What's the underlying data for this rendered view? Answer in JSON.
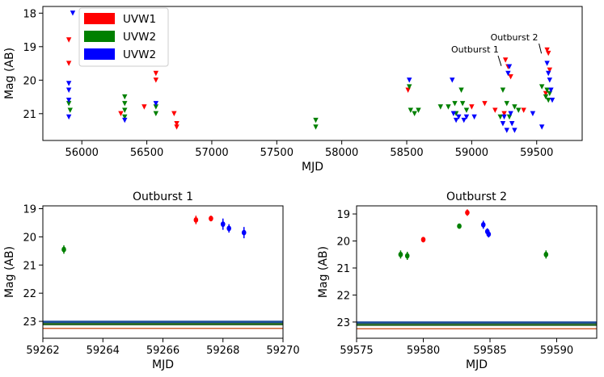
{
  "chart_data": [
    {
      "type": "scatter",
      "id": "top",
      "title": "",
      "xlabel": "MJD",
      "ylabel": "Mag (AB)",
      "xlim": [
        55700,
        59850
      ],
      "ylim": [
        21.8,
        17.8
      ],
      "xticks": [
        56000,
        56500,
        57000,
        57500,
        58000,
        58500,
        59000,
        59500
      ],
      "yticks": [
        18,
        19,
        20,
        21
      ],
      "legend": {
        "position": "top-left",
        "entries": [
          {
            "label": "UVW1",
            "color": "#ff0000"
          },
          {
            "label": "UVW2",
            "color": "#008000"
          },
          {
            "label": "UVW2",
            "color": "#0000ff"
          }
        ]
      },
      "annotations": [
        {
          "text": "Outburst 1",
          "x": 59265,
          "y": 19.6
        },
        {
          "text": "Outburst 2",
          "x": 59580,
          "y": 19.3
        }
      ],
      "series": [
        {
          "name": "UVW1",
          "color": "#ff0000",
          "marker": "triangle-down",
          "points": [
            [
              55900,
              18.8
            ],
            [
              55900,
              19.5
            ],
            [
              56300,
              21.0
            ],
            [
              56480,
              20.8
            ],
            [
              56570,
              19.8
            ],
            [
              56570,
              20.0
            ],
            [
              56710,
              21.0
            ],
            [
              56730,
              21.3
            ],
            [
              56730,
              21.4
            ],
            [
              58510,
              20.3
            ],
            [
              59000,
              20.8
            ],
            [
              59100,
              20.7
            ],
            [
              59180,
              20.9
            ],
            [
              59250,
              21.0
            ],
            [
              59260,
              19.4
            ],
            [
              59280,
              19.6
            ],
            [
              59300,
              19.9
            ],
            [
              59400,
              20.9
            ],
            [
              59570,
              20.4
            ],
            [
              59580,
              19.1
            ],
            [
              59590,
              19.2
            ],
            [
              59600,
              19.7
            ]
          ]
        },
        {
          "name": "UVW2",
          "color": "#008000",
          "marker": "triangle-down",
          "points": [
            [
              55900,
              20.7
            ],
            [
              55910,
              20.9
            ],
            [
              56330,
              20.5
            ],
            [
              56330,
              20.7
            ],
            [
              56330,
              20.9
            ],
            [
              56330,
              21.1
            ],
            [
              56570,
              20.8
            ],
            [
              56570,
              21.0
            ],
            [
              57800,
              21.2
            ],
            [
              57800,
              21.4
            ],
            [
              58520,
              20.2
            ],
            [
              58530,
              20.9
            ],
            [
              58560,
              21.0
            ],
            [
              58590,
              20.9
            ],
            [
              58760,
              20.8
            ],
            [
              58820,
              20.8
            ],
            [
              58870,
              20.7
            ],
            [
              58880,
              21.0
            ],
            [
              58920,
              20.3
            ],
            [
              58930,
              20.7
            ],
            [
              58960,
              20.9
            ],
            [
              59220,
              21.1
            ],
            [
              59240,
              20.3
            ],
            [
              59270,
              20.7
            ],
            [
              59290,
              21.1
            ],
            [
              59330,
              20.8
            ],
            [
              59360,
              20.9
            ],
            [
              59540,
              20.2
            ],
            [
              59570,
              20.5
            ],
            [
              59580,
              20.3
            ],
            [
              59590,
              20.6
            ],
            [
              59600,
              20.4
            ]
          ]
        },
        {
          "name": "UVW2",
          "color": "#0000ff",
          "marker": "triangle-down",
          "points": [
            [
              55900,
              20.1
            ],
            [
              55900,
              20.3
            ],
            [
              55900,
              20.6
            ],
            [
              55900,
              21.1
            ],
            [
              55930,
              18.0
            ],
            [
              56330,
              21.2
            ],
            [
              56570,
              20.7
            ],
            [
              58520,
              20.0
            ],
            [
              58850,
              20.0
            ],
            [
              58860,
              21.0
            ],
            [
              58880,
              21.2
            ],
            [
              58900,
              21.1
            ],
            [
              58940,
              21.2
            ],
            [
              58960,
              21.1
            ],
            [
              59020,
              21.1
            ],
            [
              59240,
              21.3
            ],
            [
              59250,
              21.1
            ],
            [
              59270,
              21.5
            ],
            [
              59280,
              19.8
            ],
            [
              59290,
              19.6
            ],
            [
              59300,
              21.0
            ],
            [
              59310,
              21.3
            ],
            [
              59330,
              21.5
            ],
            [
              59470,
              21.0
            ],
            [
              59540,
              21.4
            ],
            [
              59580,
              19.5
            ],
            [
              59590,
              19.8
            ],
            [
              59600,
              20.0
            ],
            [
              59610,
              20.3
            ],
            [
              59620,
              20.6
            ]
          ]
        }
      ]
    },
    {
      "type": "scatter",
      "id": "bottom-left",
      "title": "Outburst 1",
      "xlabel": "MJD",
      "ylabel": "Mag (AB)",
      "xlim": [
        59262,
        59270
      ],
      "ylim": [
        23.6,
        18.9
      ],
      "xticks": [
        59262,
        59264,
        59266,
        59268,
        59270
      ],
      "yticks": [
        19,
        20,
        21,
        22,
        23
      ],
      "hlines": [
        {
          "y": 23.02,
          "color": "#1f4e9b"
        },
        {
          "y": 23.1,
          "color": "#2e6b2e"
        },
        {
          "y": 23.25,
          "color": "#d06030"
        }
      ],
      "series": [
        {
          "name": "UVW1",
          "color": "#ff0000",
          "points": [
            [
              59267.1,
              19.4,
              0.15
            ],
            [
              59267.6,
              19.35,
              0.1
            ]
          ]
        },
        {
          "name": "UVW2",
          "color": "#008000",
          "points": [
            [
              59262.7,
              20.45,
              0.15
            ]
          ]
        },
        {
          "name": "UVW2",
          "color": "#0000ff",
          "points": [
            [
              59268.0,
              19.55,
              0.2
            ],
            [
              59268.2,
              19.7,
              0.15
            ],
            [
              59268.7,
              19.85,
              0.2
            ]
          ]
        }
      ]
    },
    {
      "type": "scatter",
      "id": "bottom-right",
      "title": "Outburst 2",
      "xlabel": "MJD",
      "ylabel": "Mag (AB)",
      "xlim": [
        59575,
        59593
      ],
      "ylim": [
        23.6,
        18.7
      ],
      "xticks": [
        59575,
        59580,
        59585,
        59590
      ],
      "yticks": [
        19,
        20,
        21,
        22,
        23
      ],
      "hlines": [
        {
          "y": 23.02,
          "color": "#1f4e9b"
        },
        {
          "y": 23.1,
          "color": "#2e6b2e"
        },
        {
          "y": 23.25,
          "color": "#d06030"
        }
      ],
      "series": [
        {
          "name": "UVW1",
          "color": "#ff0000",
          "points": [
            [
              59580.0,
              19.95,
              0.1
            ],
            [
              59583.3,
              18.95,
              0.12
            ]
          ]
        },
        {
          "name": "UVW2",
          "color": "#008000",
          "points": [
            [
              59578.3,
              20.5,
              0.15
            ],
            [
              59578.8,
              20.55,
              0.15
            ],
            [
              59582.7,
              19.45,
              0.08
            ],
            [
              59589.2,
              20.5,
              0.15
            ]
          ]
        },
        {
          "name": "UVW2",
          "color": "#0000ff",
          "points": [
            [
              59584.5,
              19.4,
              0.15
            ],
            [
              59584.8,
              19.65,
              0.12
            ],
            [
              59584.9,
              19.75,
              0.12
            ]
          ]
        }
      ]
    }
  ]
}
